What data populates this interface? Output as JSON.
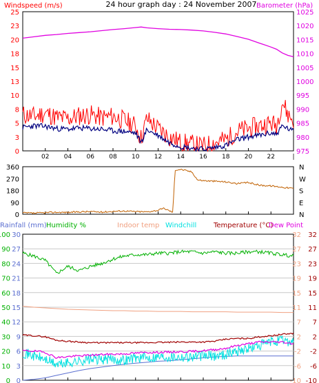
{
  "title": "24 hour graph day : 24 November 2007",
  "colors": {
    "plot_bg": "#ffffff",
    "frame": "#000000",
    "wind_gust": "#ff0000",
    "wind_avg": "#000080",
    "barometer": "#e000e0",
    "direction": "#c06000",
    "rainfall": "#5a6ed0",
    "humidity": "#00b000",
    "indoor": "#f0a080",
    "windchill": "#00e0e0",
    "temperature": "#a00000",
    "dewpoint": "#e000e0"
  },
  "x_ticks": [
    "02",
    "04",
    "06",
    "08",
    "10",
    "12",
    "14",
    "16",
    "18",
    "20",
    "22",
    "|"
  ],
  "chart_data": [
    {
      "type": "line",
      "panel": "wind-barometer",
      "legend_left": "Windspeed (m/s)",
      "legend_right": "Barometer (hPa)",
      "x_label": "hour",
      "x": [
        0,
        1,
        2,
        3,
        4,
        5,
        6,
        7,
        8,
        9,
        10,
        10.5,
        11,
        12,
        13,
        14,
        15,
        16,
        17,
        18,
        19,
        20,
        21,
        22,
        22.5,
        23,
        23.5,
        24
      ],
      "series": [
        {
          "name": "Windspeed gust",
          "axis": "left",
          "values": [
            6.5,
            6.2,
            6.8,
            6.0,
            5.8,
            6.3,
            6.5,
            6.0,
            6.2,
            5.5,
            4.5,
            2.2,
            5.8,
            4.0,
            2.5,
            1.5,
            1.2,
            0.8,
            1.5,
            2.0,
            3.5,
            4.0,
            4.5,
            5.0,
            4.5,
            9.0,
            6.5,
            5.5
          ]
        },
        {
          "name": "Windspeed average",
          "axis": "left",
          "values": [
            4.2,
            4.5,
            4.4,
            4.0,
            3.9,
            4.1,
            4.0,
            3.9,
            3.6,
            3.5,
            3.2,
            1.5,
            3.8,
            2.8,
            1.5,
            0.8,
            0.5,
            0.3,
            0.6,
            1.0,
            2.0,
            2.5,
            2.8,
            3.2,
            3.0,
            4.5,
            4.0,
            3.5
          ]
        },
        {
          "name": "Barometer",
          "axis": "right",
          "values": [
            1015.5,
            1016.0,
            1016.5,
            1016.8,
            1017.2,
            1017.5,
            1017.8,
            1018.2,
            1018.6,
            1018.9,
            1019.3,
            1019.5,
            1019.2,
            1018.9,
            1018.7,
            1018.6,
            1018.4,
            1018.1,
            1017.6,
            1017.0,
            1016.1,
            1015.1,
            1013.7,
            1012.3,
            1011.5,
            1010.2,
            1009.3,
            1008.8
          ]
        }
      ],
      "ylim_left": [
        0,
        25
      ],
      "yticks_left": [
        "0",
        "3",
        "5",
        "8",
        "10",
        "13",
        "15",
        "18",
        "20",
        "23",
        "25"
      ],
      "ylim_right": [
        975,
        1025
      ],
      "yticks_right": [
        "975",
        "980",
        "985",
        "990",
        "995",
        "1000",
        "1005",
        "1010",
        "1015",
        "1020",
        "1025"
      ]
    },
    {
      "type": "line",
      "panel": "wind-direction",
      "x_label": "hour",
      "x": [
        0,
        1,
        2,
        3,
        4,
        5,
        6,
        7,
        8,
        9,
        10,
        11,
        12,
        12.5,
        13.3,
        13.5,
        14,
        15,
        15.5,
        16,
        17,
        18,
        19,
        20,
        21,
        22,
        23,
        24
      ],
      "series": [
        {
          "name": "Wind direction",
          "values": [
            10,
            8,
            12,
            15,
            14,
            18,
            20,
            16,
            22,
            25,
            20,
            18,
            30,
            45,
            15,
            335,
            340,
            320,
            260,
            255,
            250,
            245,
            232,
            240,
            220,
            215,
            205,
            195
          ]
        }
      ],
      "ylim": [
        0,
        360
      ],
      "yticks_left": [
        "0",
        "90",
        "180",
        "270",
        "360"
      ],
      "yticks_right": [
        "N",
        "E",
        "S",
        "W",
        "N"
      ]
    },
    {
      "type": "line",
      "panel": "temperature-humidity-rain",
      "legend": [
        "Rainfall (mm)",
        "Humidity %",
        "Indoor temp",
        "Windchill",
        "Temperature (°C)",
        "Dew Point"
      ],
      "x_label": "hour",
      "x": [
        0,
        1,
        2,
        3,
        4,
        5,
        6,
        7,
        8,
        9,
        10,
        11,
        12,
        13,
        14,
        15,
        16,
        17,
        18,
        19,
        20,
        21,
        22,
        23,
        24
      ],
      "series": [
        {
          "name": "Rainfall (mm)",
          "axis": "rain",
          "values": [
            0,
            0.2,
            0.5,
            1.0,
            1.5,
            2.0,
            2.4,
            2.7,
            3.0,
            3.3,
            3.5,
            3.7,
            3.9,
            4.0,
            4.2,
            4.4,
            4.6,
            4.8,
            4.9,
            5.0,
            5.0,
            5.0,
            5.0,
            5.0,
            5.0
          ]
        },
        {
          "name": "Humidity %",
          "axis": "humidity",
          "values": [
            87,
            85,
            82,
            73,
            78,
            75,
            78,
            80,
            83,
            85,
            86,
            86,
            87,
            87,
            88,
            88,
            87,
            88,
            87,
            87,
            88,
            88,
            87,
            86,
            85
          ]
        },
        {
          "name": "Indoor temp",
          "axis": "temp",
          "values": [
            11.3,
            11.0,
            10.8,
            10.6,
            10.4,
            10.3,
            10.2,
            10.1,
            10.0,
            10.0,
            9.9,
            9.9,
            9.8,
            9.8,
            9.8,
            9.7,
            9.7,
            9.7,
            9.7,
            9.6,
            9.6,
            9.6,
            9.6,
            9.5,
            9.5
          ]
        },
        {
          "name": "Windchill",
          "axis": "temp",
          "values": [
            -2,
            -3,
            -4,
            -5.5,
            -5,
            -4.5,
            -4,
            -4,
            -4,
            -4.2,
            -3.5,
            -3.5,
            -3.2,
            -3.2,
            -3.2,
            -3.2,
            -3,
            -3,
            -2.5,
            -1.5,
            -1,
            0,
            1,
            1.5,
            1
          ]
        },
        {
          "name": "Temperature (°C)",
          "axis": "temp",
          "values": [
            3,
            2.8,
            2.5,
            1.5,
            1.2,
            1.0,
            0.8,
            0.8,
            0.8,
            0.8,
            0.8,
            0.8,
            0.9,
            0.9,
            1.0,
            1.0,
            1.0,
            1.2,
            1.8,
            2.0,
            2.0,
            2.5,
            2.8,
            3.2,
            3.5
          ]
        },
        {
          "name": "Dew Point",
          "axis": "temp",
          "values": [
            -1.5,
            -1.6,
            -2.0,
            -3.5,
            -3.2,
            -3.0,
            -2.8,
            -2.6,
            -2.5,
            -2.4,
            -2.2,
            -2.0,
            -2.0,
            -1.9,
            -1.8,
            -1.7,
            -1.5,
            -1.2,
            -0.8,
            0,
            0.5,
            1.0,
            1.0,
            1.0,
            0.5
          ]
        }
      ],
      "ylim_rain": [
        0,
        30
      ],
      "yticks_rain": [
        "0",
        "3",
        "6",
        "9",
        "12",
        "15",
        "18",
        "21",
        "24",
        "27",
        "30"
      ],
      "ylim_humidity": [
        0,
        100
      ],
      "yticks_humidity": [
        "0",
        "10",
        "20",
        "30",
        "40",
        "50",
        "60",
        "70",
        "80",
        "90",
        "100"
      ],
      "ylim_temp": [
        -10,
        32
      ],
      "yticks_temp_left": [
        "-10",
        "-6",
        "-2",
        "2",
        "7",
        "11",
        "15",
        "19",
        "23",
        "27",
        "32"
      ],
      "yticks_temp_right": [
        "-10",
        "-6",
        "-2",
        "2",
        "7",
        "11",
        "15",
        "19",
        "23",
        "27",
        "32"
      ],
      "grid": true
    }
  ]
}
